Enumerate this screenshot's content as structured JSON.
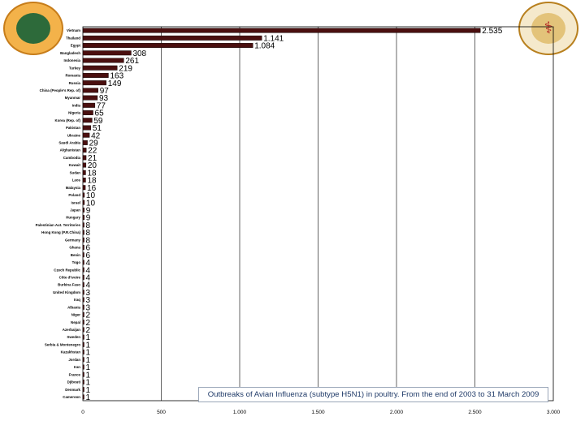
{
  "logos": {
    "left_icon": "university-seal-icon",
    "right_icon": "college-emblem-icon"
  },
  "chart_data": {
    "type": "bar",
    "orientation": "horizontal",
    "title": "Outbreaks of Avian Influenza (subtype H5N1) in poultry. From the end of 2003 to 31 March 2009",
    "xlabel": "",
    "ylabel": "",
    "xlim": [
      0,
      3000
    ],
    "x_tick_labels": [
      "0",
      "500",
      "1.000",
      "1.500",
      "2.000",
      "2.500",
      "3.000"
    ],
    "grid": "vertical",
    "bar_color": "#4a0f0f",
    "categories": [
      "Vietnam",
      "Thailand",
      "Egypt",
      "Bangladesh",
      "Indonesia",
      "Turkey",
      "Romania",
      "Russia",
      "China (People's Rep. of)",
      "Myanmar",
      "India",
      "Nigeria",
      "Korea (Rep. of)",
      "Pakistan",
      "Ukraine",
      "Saudi Arabia",
      "Afghanistan",
      "Cambodia",
      "Kuwait",
      "Sudan",
      "Laos",
      "Malaysia",
      "Poland",
      "Israel",
      "Japan",
      "Hungary",
      "Palestinian Aut. Territories",
      "Hong Kong (P.R.China)",
      "Germany",
      "Ghana",
      "Benin",
      "Togo",
      "Czech Republic",
      "Côte d'Ivoire",
      "Burkina Faso",
      "United Kingdom",
      "Iraq",
      "Albania",
      "Niger",
      "Nepal",
      "Azerbaijan",
      "Sweden",
      "Serbia & Montenegro",
      "Kazakhstan",
      "Jordan",
      "Iran",
      "France",
      "Djibouti",
      "Denmark",
      "Cameroon"
    ],
    "values": [
      2535,
      1141,
      1084,
      308,
      261,
      219,
      163,
      149,
      97,
      93,
      77,
      65,
      59,
      51,
      42,
      29,
      22,
      21,
      20,
      18,
      18,
      16,
      10,
      10,
      9,
      9,
      8,
      8,
      8,
      6,
      6,
      4,
      4,
      4,
      4,
      3,
      3,
      3,
      2,
      2,
      2,
      1,
      1,
      1,
      1,
      1,
      1,
      1,
      1,
      1
    ],
    "value_labels": [
      "2.535",
      "1.141",
      "1.084",
      "308",
      "261",
      "219",
      "163",
      "149",
      "97",
      "93",
      "77",
      "65",
      "59",
      "51",
      "42",
      "29",
      "22",
      "21",
      "20",
      "18",
      "18",
      "16",
      "10",
      "10",
      "9",
      "9",
      "8",
      "8",
      "8",
      "6",
      "6",
      "4",
      "4",
      "4",
      "4",
      "3",
      "3",
      "3",
      "2",
      "2",
      "2",
      "1",
      "1",
      "1",
      "1",
      "1",
      "1",
      "1",
      "1",
      "1"
    ]
  }
}
